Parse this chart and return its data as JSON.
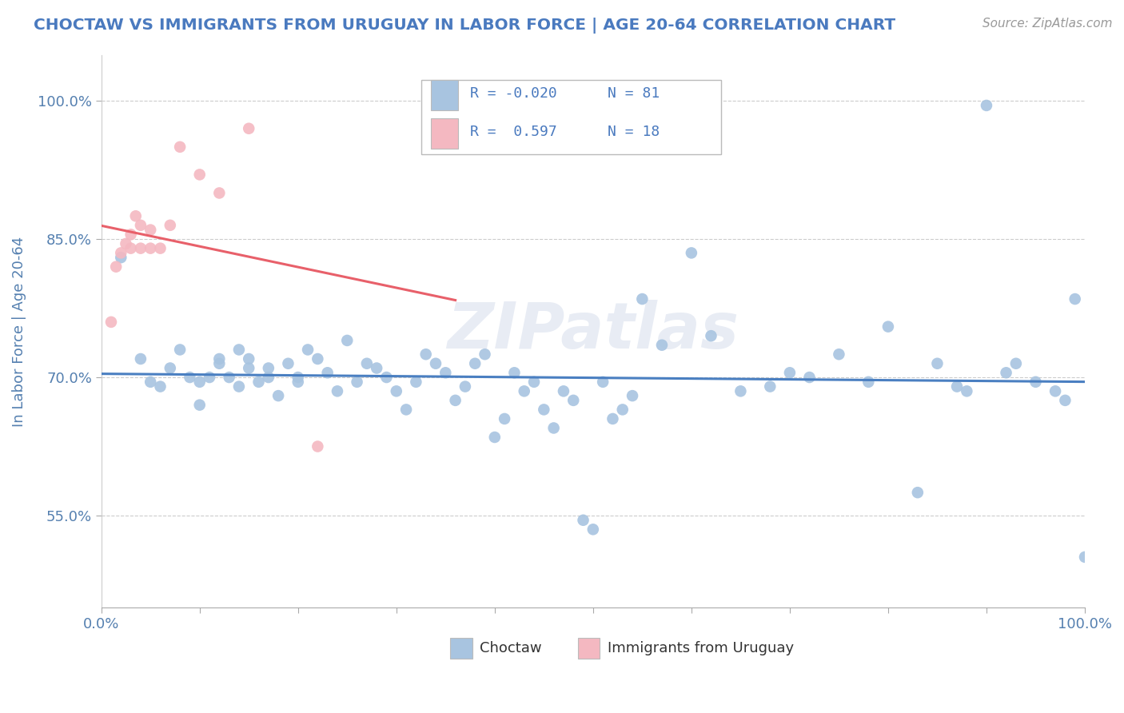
{
  "title": "CHOCTAW VS IMMIGRANTS FROM URUGUAY IN LABOR FORCE | AGE 20-64 CORRELATION CHART",
  "source": "Source: ZipAtlas.com",
  "ylabel": "In Labor Force | Age 20-64",
  "xlim": [
    0.0,
    1.0
  ],
  "ylim": [
    0.45,
    1.05
  ],
  "y_ticks": [
    0.55,
    0.7,
    0.85,
    1.0
  ],
  "y_tick_labels": [
    "55.0%",
    "70.0%",
    "85.0%",
    "100.0%"
  ],
  "choctaw_R": -0.02,
  "choctaw_N": 81,
  "uruguay_R": 0.597,
  "uruguay_N": 18,
  "choctaw_color": "#a8c4e0",
  "uruguay_color": "#f4b8c1",
  "choctaw_line_color": "#4a7fc1",
  "uruguay_line_color": "#e8606a",
  "watermark": "ZIPatlas",
  "choctaw_x": [
    0.02,
    0.04,
    0.05,
    0.06,
    0.07,
    0.08,
    0.09,
    0.1,
    0.11,
    0.12,
    0.12,
    0.13,
    0.14,
    0.14,
    0.15,
    0.15,
    0.16,
    0.17,
    0.17,
    0.18,
    0.19,
    0.2,
    0.2,
    0.21,
    0.22,
    0.23,
    0.24,
    0.25,
    0.26,
    0.27,
    0.28,
    0.29,
    0.3,
    0.31,
    0.32,
    0.33,
    0.34,
    0.35,
    0.36,
    0.37,
    0.38,
    0.39,
    0.4,
    0.41,
    0.42,
    0.43,
    0.44,
    0.45,
    0.46,
    0.47,
    0.48,
    0.49,
    0.5,
    0.51,
    0.52,
    0.53,
    0.54,
    0.55,
    0.57,
    0.6,
    0.62,
    0.65,
    0.68,
    0.7,
    0.72,
    0.75,
    0.78,
    0.8,
    0.83,
    0.85,
    0.87,
    0.88,
    0.9,
    0.92,
    0.93,
    0.95,
    0.97,
    0.98,
    0.99,
    1.0,
    0.1
  ],
  "choctaw_y": [
    0.83,
    0.72,
    0.695,
    0.69,
    0.71,
    0.73,
    0.7,
    0.695,
    0.7,
    0.715,
    0.72,
    0.7,
    0.73,
    0.69,
    0.72,
    0.71,
    0.695,
    0.71,
    0.7,
    0.68,
    0.715,
    0.7,
    0.695,
    0.73,
    0.72,
    0.705,
    0.685,
    0.74,
    0.695,
    0.715,
    0.71,
    0.7,
    0.685,
    0.665,
    0.695,
    0.725,
    0.715,
    0.705,
    0.675,
    0.69,
    0.715,
    0.725,
    0.635,
    0.655,
    0.705,
    0.685,
    0.695,
    0.665,
    0.645,
    0.685,
    0.675,
    0.545,
    0.535,
    0.695,
    0.655,
    0.665,
    0.68,
    0.785,
    0.735,
    0.835,
    0.745,
    0.685,
    0.69,
    0.705,
    0.7,
    0.725,
    0.695,
    0.755,
    0.575,
    0.715,
    0.69,
    0.685,
    0.995,
    0.705,
    0.715,
    0.695,
    0.685,
    0.675,
    0.785,
    0.505,
    0.67
  ],
  "uruguay_x": [
    0.01,
    0.015,
    0.02,
    0.025,
    0.03,
    0.03,
    0.035,
    0.04,
    0.04,
    0.05,
    0.05,
    0.06,
    0.07,
    0.08,
    0.1,
    0.12,
    0.15,
    0.22
  ],
  "uruguay_y": [
    0.76,
    0.82,
    0.835,
    0.845,
    0.84,
    0.855,
    0.875,
    0.84,
    0.865,
    0.84,
    0.86,
    0.84,
    0.865,
    0.95,
    0.92,
    0.9,
    0.97,
    0.625
  ],
  "legend_R1_label": "R = -0.020",
  "legend_N1_label": "N = 81",
  "legend_R2_label": "R =  0.597",
  "legend_N2_label": "N = 18",
  "bottom_legend_choctaw": "Choctaw",
  "bottom_legend_uruguay": "Immigrants from Uruguay"
}
